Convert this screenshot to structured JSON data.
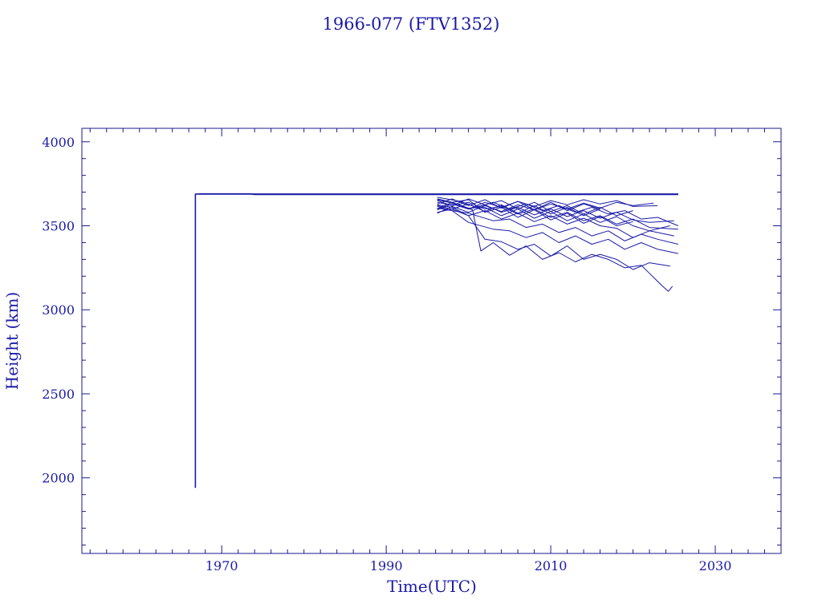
{
  "chart_data": {
    "type": "line",
    "title": "1966-077 (FTV1352)",
    "xlabel": "Time(UTC)",
    "ylabel": "Height (km)",
    "xlim": [
      1953,
      2038
    ],
    "ylim": [
      1550,
      4080
    ],
    "x_ticks": [
      1970,
      1990,
      2010,
      2030
    ],
    "x_minor_step": 2,
    "y_ticks": [
      2000,
      2500,
      3000,
      3500,
      4000
    ],
    "y_minor_step": 100,
    "line_color": "#1a1aa8",
    "grid": false,
    "series": [
      {
        "kind": "parent",
        "values": [
          [
            1966.8,
            1940
          ],
          [
            1966.8,
            3688
          ],
          [
            1967.5,
            3690
          ],
          [
            1973.5,
            3690
          ],
          [
            1974.0,
            3686
          ],
          [
            2025.5,
            3686
          ]
        ]
      },
      {
        "kind": "parent",
        "values": [
          [
            1967.2,
            3689
          ],
          [
            2025.5,
            3689
          ]
        ]
      },
      {
        "kind": "debris",
        "values": [
          [
            1996.2,
            3655
          ],
          [
            1998.5,
            3630
          ],
          [
            2000.5,
            3595
          ],
          [
            2001.5,
            3350
          ],
          [
            2003,
            3400
          ],
          [
            2005,
            3325
          ],
          [
            2007,
            3380
          ],
          [
            2009,
            3300
          ],
          [
            2011,
            3340
          ],
          [
            2013,
            3285
          ],
          [
            2015,
            3330
          ],
          [
            2017,
            3300
          ],
          [
            2019,
            3250
          ],
          [
            2021,
            3265
          ],
          [
            2023.5,
            3145
          ],
          [
            2024.3,
            3110
          ],
          [
            2024.8,
            3140
          ]
        ]
      },
      {
        "kind": "debris",
        "values": [
          [
            1996.2,
            3625
          ],
          [
            1998,
            3610
          ],
          [
            2000,
            3560
          ],
          [
            2002,
            3420
          ],
          [
            2004,
            3405
          ],
          [
            2006,
            3360
          ],
          [
            2008,
            3390
          ],
          [
            2010,
            3320
          ],
          [
            2012,
            3380
          ],
          [
            2014,
            3300
          ],
          [
            2016,
            3330
          ],
          [
            2018,
            3300
          ],
          [
            2020,
            3240
          ],
          [
            2022,
            3280
          ],
          [
            2024.5,
            3260
          ]
        ]
      },
      {
        "kind": "debris",
        "values": [
          [
            1996.2,
            3605
          ],
          [
            1998,
            3590
          ],
          [
            2000,
            3520
          ],
          [
            2003,
            3480
          ],
          [
            2005,
            3470
          ],
          [
            2007,
            3430
          ],
          [
            2009,
            3460
          ],
          [
            2011,
            3400
          ],
          [
            2013,
            3440
          ],
          [
            2015,
            3390
          ],
          [
            2017,
            3420
          ],
          [
            2019,
            3360
          ],
          [
            2021,
            3400
          ],
          [
            2023,
            3360
          ],
          [
            2025.5,
            3335
          ]
        ]
      },
      {
        "kind": "debris",
        "values": [
          [
            1996.2,
            3615
          ],
          [
            1998,
            3590
          ],
          [
            2000,
            3575
          ],
          [
            2003,
            3530
          ],
          [
            2005,
            3540
          ],
          [
            2007,
            3490
          ],
          [
            2009,
            3510
          ],
          [
            2011,
            3460
          ],
          [
            2013,
            3490
          ],
          [
            2015,
            3440
          ],
          [
            2017,
            3470
          ],
          [
            2019,
            3410
          ],
          [
            2021,
            3450
          ],
          [
            2023,
            3420
          ],
          [
            2025.5,
            3390
          ]
        ]
      },
      {
        "kind": "debris",
        "values": [
          [
            1996.2,
            3580
          ],
          [
            1998,
            3600
          ],
          [
            2000,
            3560
          ],
          [
            2002,
            3590
          ],
          [
            2004,
            3540
          ],
          [
            2006,
            3575
          ],
          [
            2008,
            3525
          ],
          [
            2010,
            3560
          ],
          [
            2012,
            3510
          ],
          [
            2014,
            3545
          ],
          [
            2016,
            3500
          ],
          [
            2018,
            3485
          ],
          [
            2020,
            3430
          ],
          [
            2022,
            3470
          ],
          [
            2025,
            3440
          ]
        ]
      },
      {
        "kind": "debris",
        "values": [
          [
            1996.2,
            3640
          ],
          [
            1998,
            3620
          ],
          [
            2000,
            3640
          ],
          [
            2002,
            3600
          ],
          [
            2004,
            3615
          ],
          [
            2006,
            3570
          ],
          [
            2008,
            3600
          ],
          [
            2010,
            3550
          ],
          [
            2012,
            3580
          ],
          [
            2014,
            3530
          ],
          [
            2016,
            3560
          ],
          [
            2018,
            3510
          ],
          [
            2020,
            3540
          ],
          [
            2022,
            3490
          ],
          [
            2025.5,
            3480
          ]
        ]
      },
      {
        "kind": "debris",
        "values": [
          [
            1996.2,
            3660
          ],
          [
            1998,
            3640
          ],
          [
            2000,
            3600
          ],
          [
            2002,
            3625
          ],
          [
            2004,
            3580
          ],
          [
            2006,
            3610
          ],
          [
            2008,
            3565
          ],
          [
            2010,
            3600
          ],
          [
            2012,
            3555
          ],
          [
            2014,
            3590
          ],
          [
            2016,
            3545
          ],
          [
            2018,
            3580
          ],
          [
            2020,
            3535
          ],
          [
            2022,
            3520
          ],
          [
            2025,
            3530
          ]
        ]
      },
      {
        "kind": "debris",
        "values": [
          [
            1996.2,
            3670
          ],
          [
            1999,
            3645
          ],
          [
            2001,
            3610
          ],
          [
            2003,
            3640
          ],
          [
            2005,
            3600
          ],
          [
            2007,
            3630
          ],
          [
            2009,
            3590
          ],
          [
            2011,
            3620
          ],
          [
            2013,
            3580
          ],
          [
            2015,
            3610
          ],
          [
            2017,
            3570
          ],
          [
            2019,
            3590
          ],
          [
            2021,
            3540
          ],
          [
            2023,
            3550
          ],
          [
            2025.5,
            3500
          ]
        ]
      },
      {
        "kind": "debris",
        "values": [
          [
            1996.2,
            3575
          ],
          [
            1998,
            3615
          ],
          [
            2000,
            3580
          ],
          [
            2002,
            3620
          ],
          [
            2004,
            3585
          ],
          [
            2006,
            3625
          ],
          [
            2008,
            3595
          ],
          [
            2010,
            3630
          ],
          [
            2012,
            3600
          ],
          [
            2014,
            3635
          ],
          [
            2016,
            3605
          ],
          [
            2018,
            3640
          ],
          [
            2020,
            3620
          ],
          [
            2022.5,
            3635
          ]
        ]
      },
      {
        "kind": "debris",
        "values": [
          [
            1996.2,
            3595
          ],
          [
            1998,
            3630
          ],
          [
            2000,
            3600
          ],
          [
            2002,
            3640
          ],
          [
            2004,
            3610
          ],
          [
            2006,
            3645
          ],
          [
            2008,
            3615
          ],
          [
            2010,
            3650
          ],
          [
            2012,
            3625
          ],
          [
            2014,
            3655
          ],
          [
            2016,
            3630
          ],
          [
            2018,
            3650
          ],
          [
            2020,
            3615
          ],
          [
            2023,
            3620
          ]
        ]
      },
      {
        "kind": "debris",
        "values": [
          [
            1996.2,
            3650
          ],
          [
            1998,
            3620
          ],
          [
            2000,
            3660
          ],
          [
            2002,
            3625
          ],
          [
            2004,
            3650
          ],
          [
            2006,
            3600
          ],
          [
            2008,
            3640
          ],
          [
            2010,
            3585
          ],
          [
            2012,
            3620
          ],
          [
            2014,
            3570
          ],
          [
            2016,
            3610
          ],
          [
            2018,
            3560
          ],
          [
            2020,
            3590
          ]
        ]
      },
      {
        "kind": "debris",
        "values": [
          [
            1996.2,
            3630
          ],
          [
            1998,
            3660
          ],
          [
            2000,
            3620
          ],
          [
            2002,
            3655
          ],
          [
            2004,
            3605
          ],
          [
            2006,
            3645
          ],
          [
            2008,
            3595
          ],
          [
            2010,
            3640
          ],
          [
            2012,
            3590
          ],
          [
            2014,
            3630
          ],
          [
            2016,
            3600
          ]
        ]
      },
      {
        "kind": "debris",
        "values": [
          [
            1996.2,
            3660
          ],
          [
            1998,
            3640
          ],
          [
            2000,
            3655
          ],
          [
            2002,
            3580
          ],
          [
            2004,
            3610
          ],
          [
            2006,
            3550
          ],
          [
            2008,
            3595
          ],
          [
            2010,
            3535
          ],
          [
            2012,
            3575
          ],
          [
            2014,
            3515
          ],
          [
            2016,
            3555
          ],
          [
            2018,
            3500
          ],
          [
            2020,
            3525
          ]
        ]
      },
      {
        "kind": "debris",
        "values": [
          [
            1996.2,
            3620
          ],
          [
            1998,
            3600
          ],
          [
            2000,
            3630
          ],
          [
            2002,
            3585
          ],
          [
            2004,
            3625
          ],
          [
            2006,
            3575
          ],
          [
            2008,
            3620
          ],
          [
            2010,
            3570
          ],
          [
            2012,
            3610
          ],
          [
            2014,
            3560
          ],
          [
            2016,
            3600
          ]
        ]
      },
      {
        "kind": "debris",
        "values": [
          [
            1996.2,
            3600
          ],
          [
            1998,
            3640
          ],
          [
            2000,
            3605
          ],
          [
            2002,
            3610
          ],
          [
            2004,
            3560
          ],
          [
            2006,
            3600
          ],
          [
            2008,
            3545
          ],
          [
            2010,
            3585
          ],
          [
            2012,
            3530
          ],
          [
            2014,
            3570
          ],
          [
            2016,
            3520
          ],
          [
            2018,
            3555
          ],
          [
            2020,
            3500
          ],
          [
            2022,
            3470
          ],
          [
            2024.5,
            3500
          ]
        ]
      }
    ]
  }
}
